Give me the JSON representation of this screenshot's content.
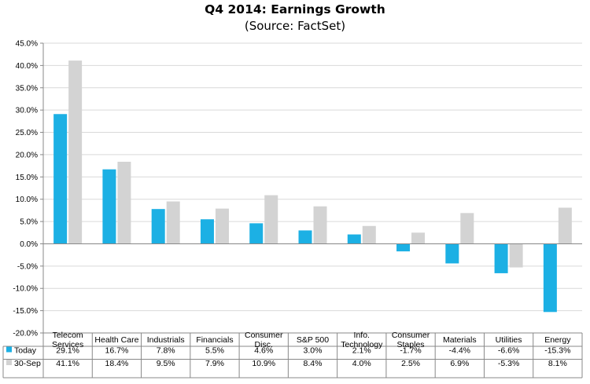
{
  "colors": {
    "today": "#1CB0E4",
    "sep30": "#D3D3D3",
    "gridline": "#D9D9D9",
    "axis": "#888888"
  },
  "chart_data": {
    "type": "bar",
    "title": "Q4 2014: Earnings Growth",
    "subtitle": "(Source: FactSet)",
    "categories": [
      [
        "Telecom",
        "Services"
      ],
      [
        "Health Care"
      ],
      [
        "Industrials"
      ],
      [
        "Financials"
      ],
      [
        "Consumer",
        "Disc."
      ],
      [
        "S&P 500"
      ],
      [
        "Info.",
        "Technology"
      ],
      [
        "Consumer",
        "Staples"
      ],
      [
        "Materials"
      ],
      [
        "Utilities"
      ],
      [
        "Energy"
      ]
    ],
    "series": [
      {
        "name": "Today",
        "color": "#1CB0E4",
        "values": [
          29.1,
          16.7,
          7.8,
          5.5,
          4.6,
          3.0,
          2.1,
          -1.7,
          -4.4,
          -6.6,
          -15.3
        ],
        "labels": [
          "29.1%",
          "16.7%",
          "7.8%",
          "5.5%",
          "4.6%",
          "3.0%",
          "2.1%",
          "-1.7%",
          "-4.4%",
          "-6.6%",
          "-15.3%"
        ]
      },
      {
        "name": "30-Sep",
        "color": "#D3D3D3",
        "values": [
          41.1,
          18.4,
          9.5,
          7.9,
          10.9,
          8.4,
          4.0,
          2.5,
          6.9,
          -5.3,
          8.1
        ],
        "labels": [
          "41.1%",
          "18.4%",
          "9.5%",
          "7.9%",
          "10.9%",
          "8.4%",
          "4.0%",
          "2.5%",
          "6.9%",
          "-5.3%",
          "8.1%"
        ]
      }
    ],
    "ylim": [
      -20,
      45
    ],
    "y_ticks": [
      45,
      40,
      35,
      30,
      25,
      20,
      15,
      10,
      5,
      0,
      -5,
      -10,
      -15,
      -20
    ],
    "y_tick_labels": [
      "45.0%",
      "40.0%",
      "35.0%",
      "30.0%",
      "25.0%",
      "20.0%",
      "15.0%",
      "10.0%",
      "5.0%",
      "0.0%",
      "-5.0%",
      "-10.0%",
      "-15.0%",
      "-20.0%"
    ],
    "grid": true,
    "legend": "data table"
  }
}
